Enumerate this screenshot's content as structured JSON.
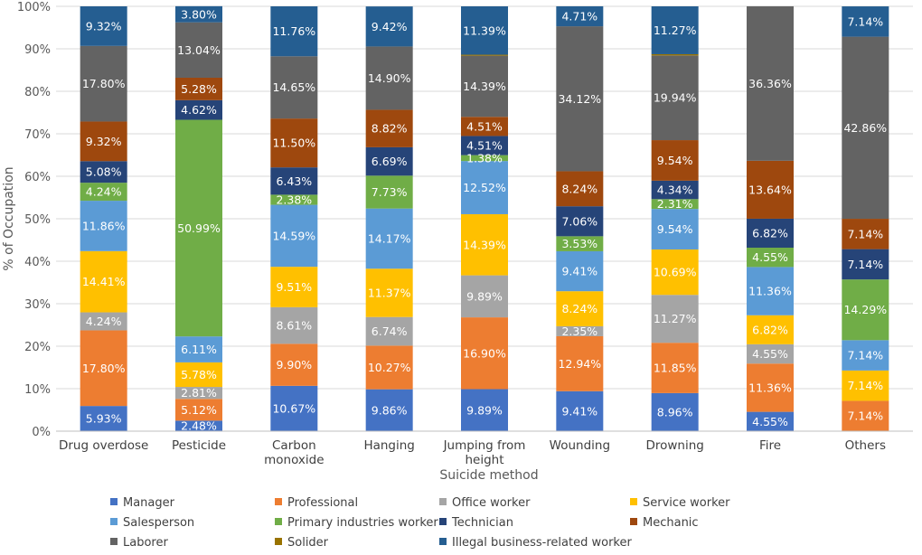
{
  "chart_data": {
    "type": "bar",
    "stacked": true,
    "percent_stacked": true,
    "title": "",
    "xlabel": "Suicide method",
    "ylabel": "% of Occupation",
    "ylim": [
      0,
      100
    ],
    "ytick_values": [
      0,
      10,
      20,
      30,
      40,
      50,
      60,
      70,
      80,
      90,
      100
    ],
    "ytick_labels": [
      "0%",
      "10%",
      "20%",
      "30%",
      "40%",
      "50%",
      "60%",
      "70%",
      "80%",
      "90%",
      "100%"
    ],
    "categories": [
      "Drug overdose",
      "Pesticide",
      "Carbon monoxide",
      "Hanging",
      "Jumping from height",
      "Wounding",
      "Drowning",
      "Fire",
      "Others"
    ],
    "category_label_lines": [
      [
        "Drug overdose"
      ],
      [
        "Pesticide"
      ],
      [
        "Carbon",
        "monoxide"
      ],
      [
        "Hanging"
      ],
      [
        "Jumping from",
        "height"
      ],
      [
        "Wounding"
      ],
      [
        "Drowning"
      ],
      [
        "Fire"
      ],
      [
        "Others"
      ]
    ],
    "legend_position": "bottom",
    "series": [
      {
        "name": "Manager",
        "color": "#4472C4",
        "values": [
          5.93,
          2.48,
          10.67,
          9.86,
          9.89,
          9.41,
          8.96,
          4.55,
          0
        ],
        "labels": [
          "5.93%",
          "2.48%",
          "10.67%",
          "9.86%",
          "9.89%",
          "9.41%",
          "8.96%",
          "4.55%",
          ""
        ]
      },
      {
        "name": "Professional",
        "color": "#ED7D31",
        "values": [
          17.8,
          5.12,
          9.9,
          10.27,
          16.9,
          12.94,
          11.85,
          11.36,
          7.14
        ],
        "labels": [
          "17.80%",
          "5.12%",
          "9.90%",
          "10.27%",
          "16.90%",
          "12.94%",
          "11.85%",
          "11.36%",
          "7.14%"
        ]
      },
      {
        "name": "Office worker",
        "color": "#A5A5A5",
        "values": [
          4.24,
          2.81,
          8.61,
          6.74,
          9.89,
          2.35,
          11.27,
          4.55,
          0
        ],
        "labels": [
          "4.24%",
          "2.81%",
          "8.61%",
          "6.74%",
          "9.89%",
          "2.35%",
          "11.27%",
          "4.55%",
          ""
        ]
      },
      {
        "name": "Service worker",
        "color": "#FFC000",
        "values": [
          14.41,
          5.78,
          9.51,
          11.37,
          14.39,
          8.24,
          10.69,
          6.82,
          7.14
        ],
        "labels": [
          "14.41%",
          "5.78%",
          "9.51%",
          "11.37%",
          "14.39%",
          "8.24%",
          "10.69%",
          "6.82%",
          "7.14%"
        ]
      },
      {
        "name": "Salesperson",
        "color": "#5B9BD5",
        "values": [
          11.86,
          6.11,
          14.59,
          14.17,
          12.52,
          9.41,
          9.54,
          11.36,
          7.14
        ],
        "labels": [
          "11.86%",
          "6.11%",
          "14.59%",
          "14.17%",
          "12.52%",
          "9.41%",
          "9.54%",
          "11.36%",
          "7.14%"
        ]
      },
      {
        "name": "Primary industries worker",
        "color": "#70AD47",
        "values": [
          4.24,
          50.99,
          2.38,
          7.73,
          1.38,
          3.53,
          2.31,
          4.55,
          14.29
        ],
        "labels": [
          "4.24%",
          "50.99%",
          "2.38%",
          "7.73%",
          "1.38%",
          "3.53%",
          "2.31%",
          "4.55%",
          "14.29%"
        ]
      },
      {
        "name": "Technician",
        "color": "#264478",
        "values": [
          5.08,
          4.62,
          6.43,
          6.69,
          4.51,
          7.06,
          4.34,
          6.82,
          7.14
        ],
        "labels": [
          "5.08%",
          "4.62%",
          "6.43%",
          "6.69%",
          "4.51%",
          "7.06%",
          "4.34%",
          "6.82%",
          "7.14%"
        ]
      },
      {
        "name": "Mechanic",
        "color": "#9E480E",
        "values": [
          9.32,
          5.28,
          11.5,
          8.82,
          4.51,
          8.24,
          9.54,
          13.64,
          7.14
        ],
        "labels": [
          "9.32%",
          "5.28%",
          "11.50%",
          "8.82%",
          "4.51%",
          "8.24%",
          "9.54%",
          "13.64%",
          "7.14%"
        ]
      },
      {
        "name": "Laborer",
        "color": "#636363",
        "values": [
          17.8,
          13.04,
          14.65,
          14.9,
          14.39,
          34.12,
          19.94,
          36.36,
          42.86
        ],
        "labels": [
          "17.80%",
          "13.04%",
          "14.65%",
          "14.90%",
          "14.39%",
          "34.12%",
          "19.94%",
          "36.36%",
          "42.86%"
        ]
      },
      {
        "name": "Solider",
        "color": "#997300",
        "values": [
          0,
          0,
          0,
          0,
          0.23,
          0,
          0.29,
          0,
          0
        ],
        "labels": [
          "",
          "",
          "",
          "",
          "",
          "",
          "",
          "",
          ""
        ]
      },
      {
        "name": "Illegal business-related worker",
        "color": "#255E91",
        "values": [
          9.32,
          3.8,
          11.76,
          9.42,
          11.39,
          4.71,
          11.27,
          0,
          7.14
        ],
        "labels": [
          "9.32%",
          "3.80%",
          "11.76%",
          "9.42%",
          "11.39%",
          "4.71%",
          "11.27%",
          "",
          "7.14%"
        ]
      }
    ]
  }
}
